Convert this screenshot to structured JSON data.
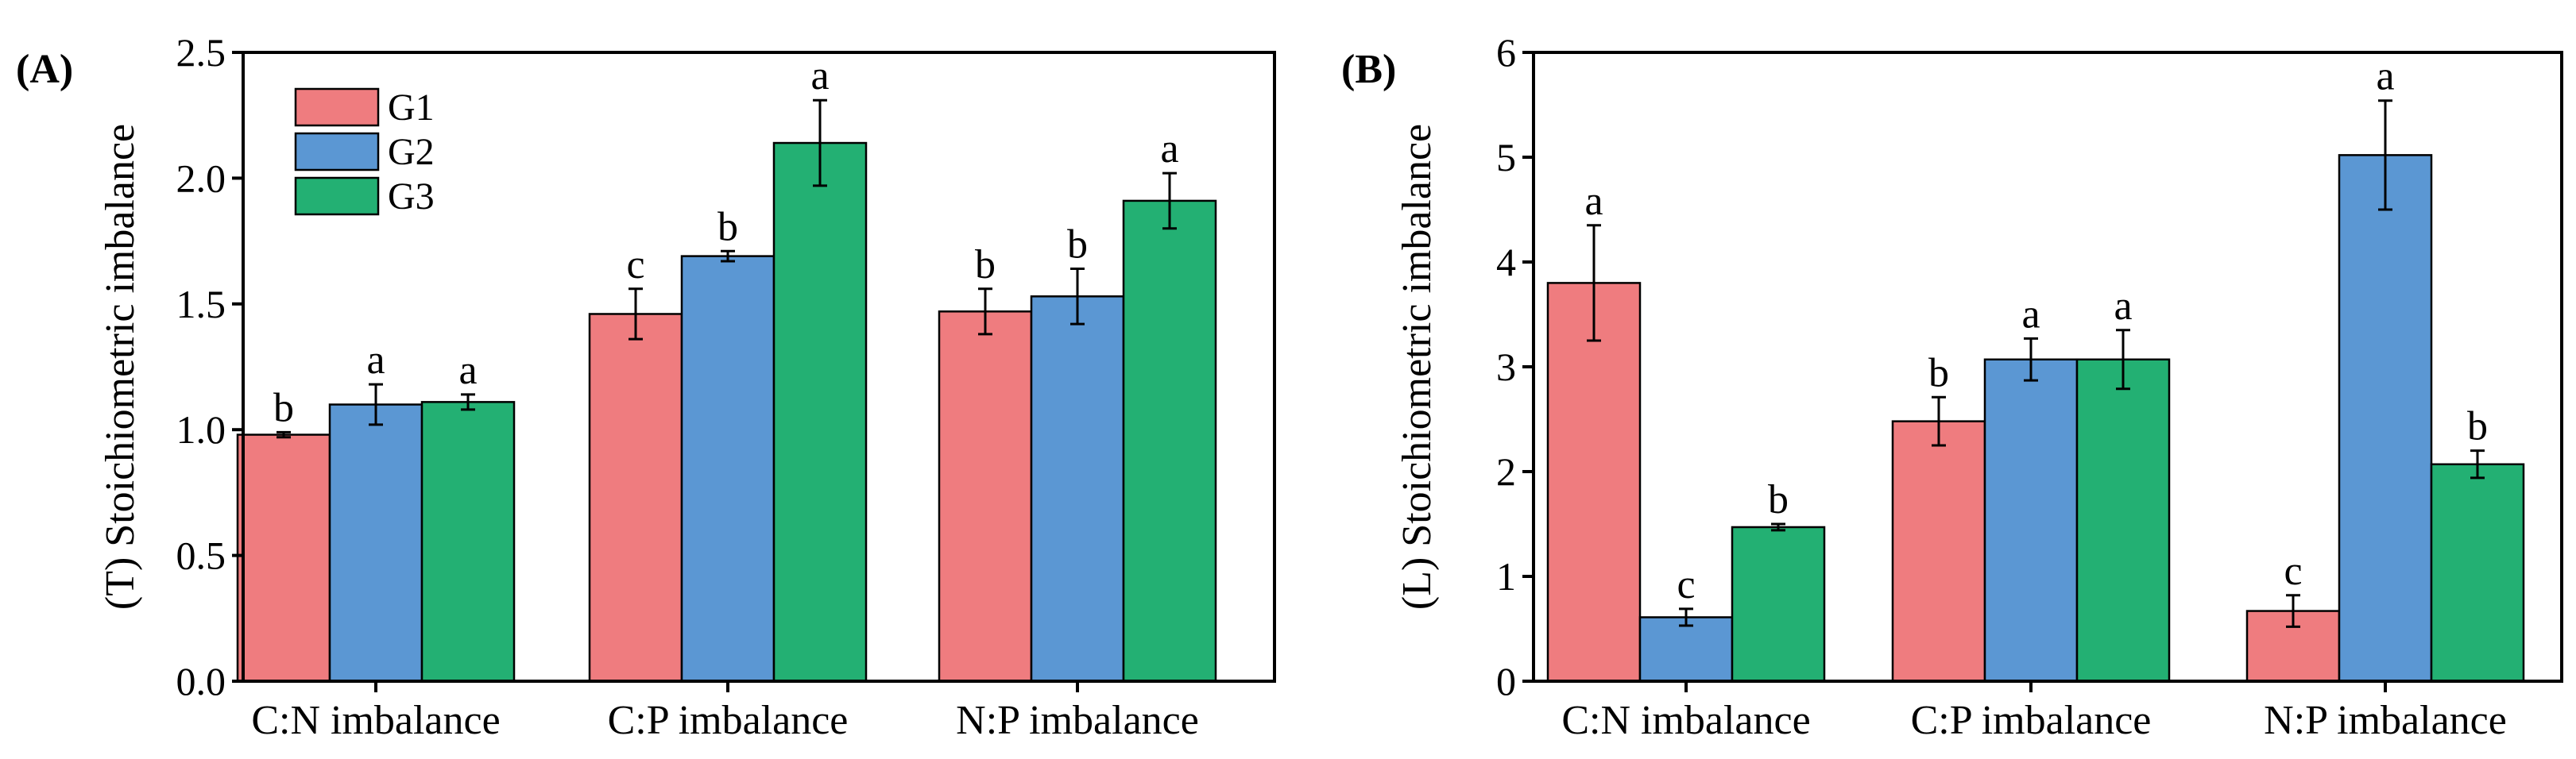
{
  "figure": {
    "legend": [
      {
        "name": "G1",
        "color": "#EF7C7F"
      },
      {
        "name": "G2",
        "color": "#5B97D3"
      },
      {
        "name": "G3",
        "color": "#23B073"
      }
    ]
  },
  "chart_data": [
    {
      "type": "bar",
      "panel_label": "(A)",
      "ylabel": "(T) Stoichiometric imbalance",
      "xlabel": "",
      "ylim": [
        0,
        2.5
      ],
      "yticks": [
        "0.0",
        "0.5",
        "1.0",
        "1.5",
        "2.0",
        "2.5"
      ],
      "categories": [
        "C:N imbalance",
        "C:P imbalance",
        "N:P imbalance"
      ],
      "legend_position": "top-left",
      "series": [
        {
          "name": "G1",
          "color": "#EF7C7F",
          "values": [
            0.98,
            1.46,
            1.47
          ],
          "errors": [
            0.01,
            0.1,
            0.09
          ],
          "letters": [
            "b",
            "c",
            "b"
          ]
        },
        {
          "name": "G2",
          "color": "#5B97D3",
          "values": [
            1.1,
            1.69,
            1.53
          ],
          "errors": [
            0.08,
            0.02,
            0.11
          ],
          "letters": [
            "a",
            "b",
            "b"
          ]
        },
        {
          "name": "G3",
          "color": "#23B073",
          "values": [
            1.11,
            2.14,
            1.91
          ],
          "errors": [
            0.03,
            0.17,
            0.11
          ],
          "letters": [
            "a",
            "a",
            "a"
          ]
        }
      ]
    },
    {
      "type": "bar",
      "panel_label": "(B)",
      "ylabel": "(L) Stoichiometric imbalance",
      "xlabel": "",
      "ylim": [
        0,
        6
      ],
      "yticks": [
        "0",
        "1",
        "2",
        "3",
        "4",
        "5",
        "6"
      ],
      "categories": [
        "C:N imbalance",
        "C:P imbalance",
        "N:P imbalance"
      ],
      "series": [
        {
          "name": "G1",
          "color": "#EF7C7F",
          "values": [
            3.8,
            2.48,
            0.67
          ],
          "errors": [
            0.55,
            0.23,
            0.15
          ],
          "letters": [
            "a",
            "b",
            "c"
          ]
        },
        {
          "name": "G2",
          "color": "#5B97D3",
          "values": [
            0.61,
            3.07,
            5.02
          ],
          "errors": [
            0.08,
            0.2,
            0.52
          ],
          "letters": [
            "c",
            "a",
            "a"
          ]
        },
        {
          "name": "G3",
          "color": "#23B073",
          "values": [
            1.47,
            3.07,
            2.07
          ],
          "errors": [
            0.03,
            0.28,
            0.13
          ],
          "letters": [
            "b",
            "a",
            "b"
          ]
        }
      ]
    }
  ]
}
